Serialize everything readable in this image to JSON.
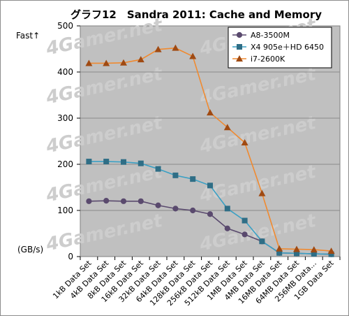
{
  "chart_data": {
    "type": "line",
    "title": "グラフ12　Sandra 2011: Cache and Memory",
    "ylabel_top": "Fast↑",
    "ylabel_unit": "(GB/s)",
    "ylim": [
      0,
      500
    ],
    "yticks": [
      0,
      100,
      200,
      300,
      400,
      500
    ],
    "grid": true,
    "legend_position": "top-right",
    "watermark": "4Gamer.net",
    "categories": [
      "1kB Data Set",
      "4kB Data Set",
      "8kB Data Set",
      "16kB Data Set",
      "32kB Data Set",
      "64kB Data Set",
      "128kB Data Set",
      "256kB Data Set",
      "512kB Data Set",
      "1MB Data Set",
      "4MB Data Set",
      "16MB Data Set",
      "64MB Data Set",
      "256MB Data...",
      "1GB Data Set"
    ],
    "series": [
      {
        "name": "A8-3500M",
        "color": "#5a4a6e",
        "marker": "circle",
        "values": [
          120,
          121,
          120,
          120,
          111,
          104,
          100,
          92,
          61,
          48,
          33,
          8,
          7,
          6,
          5
        ]
      },
      {
        "name": "X4 905e＋HD 6450",
        "color": "#2f6e86",
        "line_color": "#3aa0c4",
        "marker": "square",
        "values": [
          206,
          206,
          205,
          202,
          190,
          176,
          168,
          154,
          104,
          78,
          33,
          8,
          7,
          6,
          5
        ]
      },
      {
        "name": "i7-2600K",
        "color": "#a04a12",
        "line_color": "#f08a30",
        "marker": "triangle",
        "values": [
          419,
          419,
          420,
          427,
          449,
          452,
          434,
          312,
          280,
          247,
          137,
          17,
          16,
          15,
          12
        ]
      }
    ]
  }
}
